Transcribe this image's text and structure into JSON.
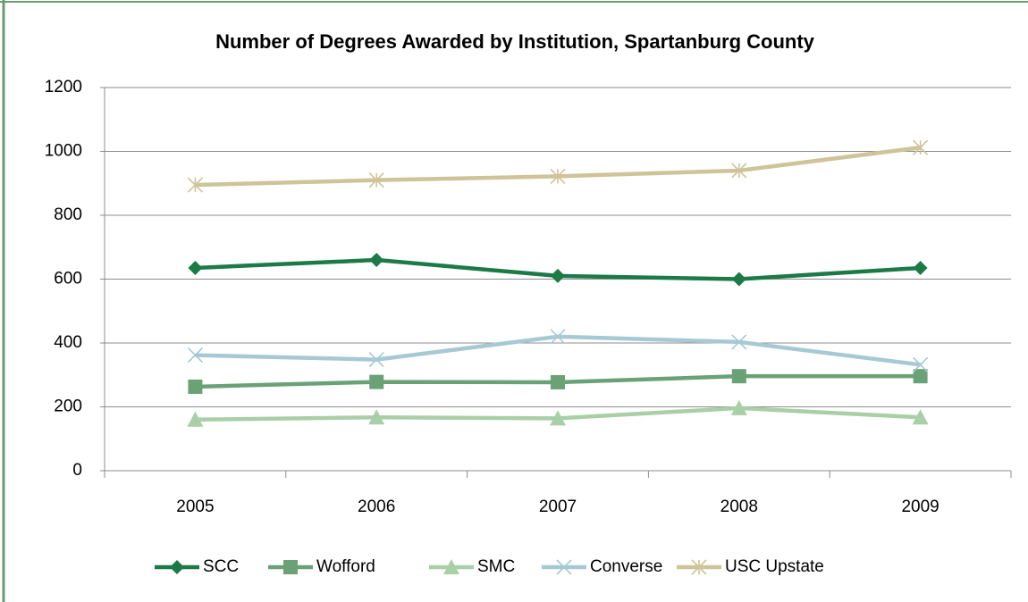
{
  "chart_data": {
    "type": "line",
    "title": "Number of Degrees Awarded by Institution, Spartanburg County",
    "categories": [
      "2005",
      "2006",
      "2007",
      "2008",
      "2009"
    ],
    "series": [
      {
        "name": "SCC",
        "color": "#1b7a46",
        "marker": "diamond",
        "values": [
          635,
          660,
          610,
          600,
          635
        ]
      },
      {
        "name": "Wofford",
        "color": "#6aa276",
        "marker": "square",
        "values": [
          263,
          278,
          277,
          296,
          296
        ]
      },
      {
        "name": "SMC",
        "color": "#a9cfa6",
        "marker": "triangle",
        "values": [
          160,
          167,
          164,
          196,
          167
        ]
      },
      {
        "name": "Converse",
        "color": "#a6c9d5",
        "marker": "x",
        "values": [
          362,
          348,
          420,
          403,
          332
        ]
      },
      {
        "name": "USC Upstate",
        "color": "#cfc398",
        "marker": "star",
        "values": [
          895,
          910,
          922,
          940,
          1012
        ]
      }
    ],
    "ylim": [
      0,
      1200
    ],
    "yticks": [
      0,
      200,
      400,
      600,
      800,
      1000,
      1200
    ],
    "grid": true,
    "legend": "bottom"
  }
}
